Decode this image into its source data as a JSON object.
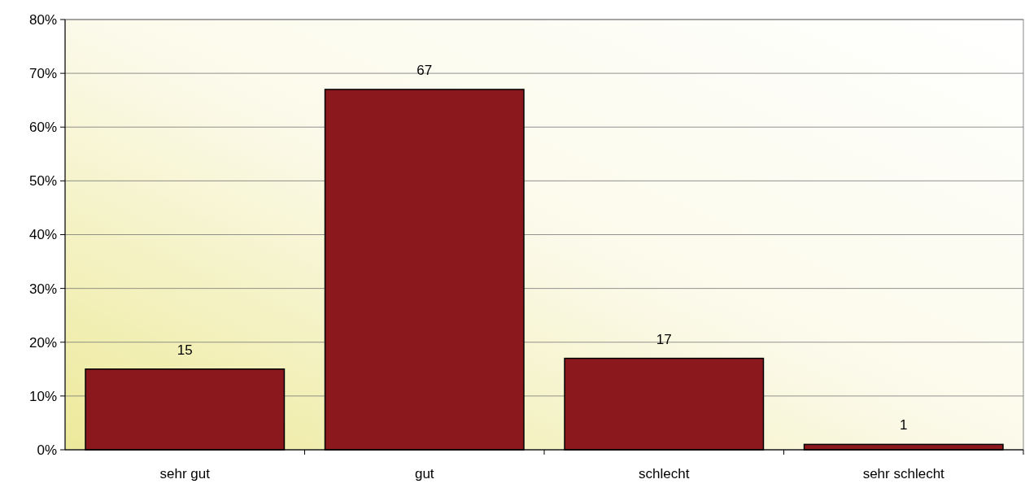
{
  "chart_data": {
    "type": "bar",
    "categories": [
      "sehr gut",
      "gut",
      "schlecht",
      "sehr schlecht"
    ],
    "values": [
      15,
      67,
      17,
      1
    ],
    "color": "#8b181d",
    "ylim": [
      0,
      80
    ],
    "yticks": [
      {
        "value": 0,
        "label": "0%"
      },
      {
        "value": 10,
        "label": "10%"
      },
      {
        "value": 20,
        "label": "20%"
      },
      {
        "value": 30,
        "label": "30%"
      },
      {
        "value": 40,
        "label": "40%"
      },
      {
        "value": 50,
        "label": "50%"
      },
      {
        "value": 60,
        "label": "60%"
      },
      {
        "value": 70,
        "label": "70%"
      },
      {
        "value": 80,
        "label": "80%"
      }
    ],
    "grid": "y",
    "data_labels": true
  }
}
